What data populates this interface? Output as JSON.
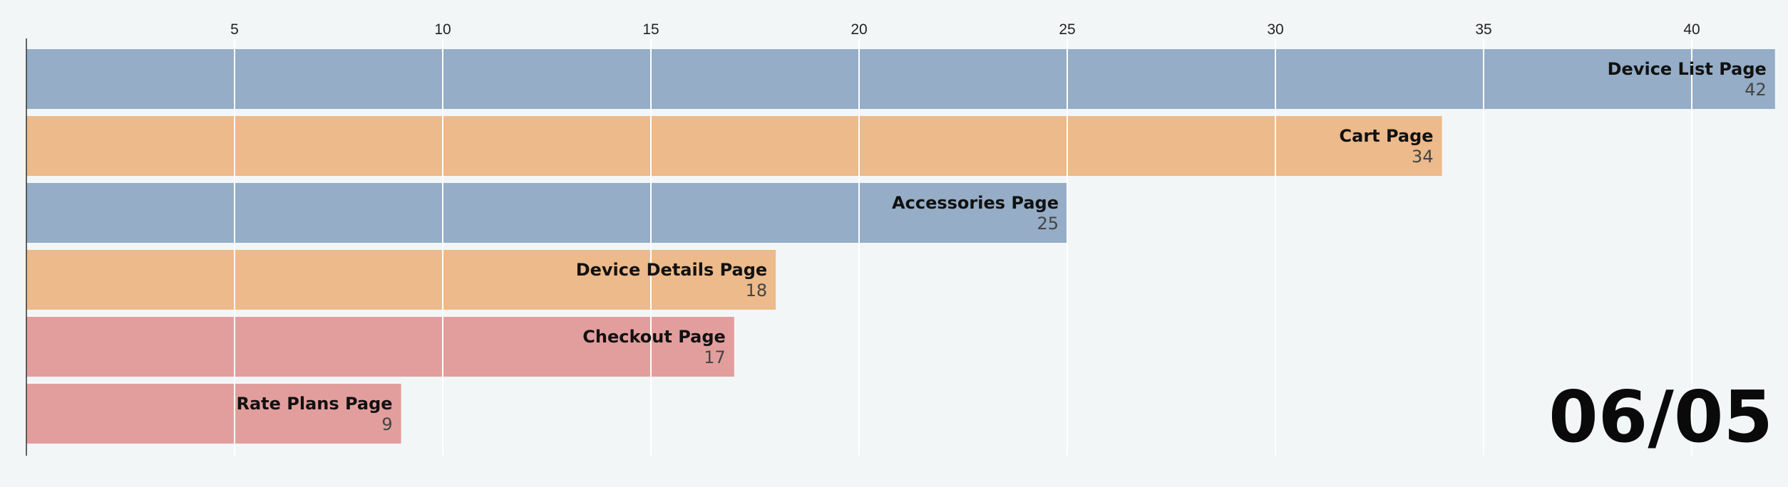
{
  "chart_data": {
    "type": "bar",
    "orientation": "horizontal",
    "categories": [
      "Device List Page",
      "Cart Page",
      "Accessories Page",
      "Device Details Page",
      "Checkout Page",
      "Rate Plans Page"
    ],
    "values": [
      42,
      34,
      25,
      18,
      17,
      9
    ],
    "colors": [
      "#95adc6",
      "#ecba8b",
      "#95adc6",
      "#ecba8b",
      "#e29e9d",
      "#e29e9d"
    ],
    "x_ticks": [
      5,
      10,
      15,
      20,
      25,
      30,
      35,
      40
    ],
    "xlim": [
      0,
      42
    ],
    "grid": true,
    "title": "",
    "xlabel": "",
    "ylabel": "",
    "date_label": "06/05"
  }
}
